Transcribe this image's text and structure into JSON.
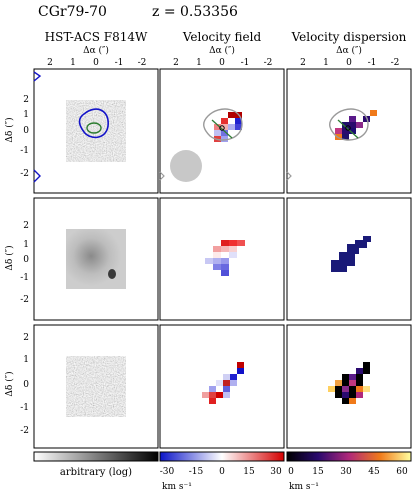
{
  "header": {
    "object_name": "CGr79-70",
    "redshift_label": "z = 0.53356"
  },
  "columns": [
    {
      "title": "HST-ACS F814W",
      "xlabel": "Δα (″)"
    },
    {
      "title": "Velocity field",
      "xlabel": "Δα (″)"
    },
    {
      "title": "Velocity dispersion",
      "xlabel": "Δα (″)"
    }
  ],
  "axes": {
    "x_ticks": [
      "2",
      "1",
      "0",
      "-1",
      "-2"
    ],
    "y_ticks": [
      "2",
      "1",
      "0",
      "-1",
      "-2"
    ],
    "ylabel": "Δδ (″)"
  },
  "colorbars": {
    "image": {
      "label": "arbitrary (log)",
      "ticks": []
    },
    "velocity": {
      "label": "km s⁻¹",
      "ticks": [
        "-30",
        "-15",
        "0",
        "15",
        "30"
      ]
    },
    "dispersion": {
      "label": "km s⁻¹",
      "ticks": [
        "0",
        "15",
        "30",
        "45",
        "60"
      ]
    }
  },
  "colors": {
    "contour_outer": "#1414c8",
    "contour_inner": "#2e7d32",
    "beam": "#c8c8c8",
    "zero_velocity": "#ffffff"
  }
}
